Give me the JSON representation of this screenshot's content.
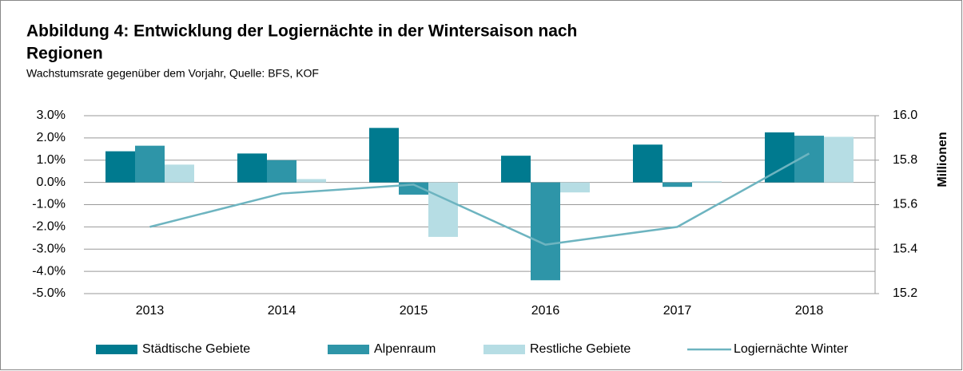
{
  "chart_data": {
    "type": "bar",
    "title": "Abbildung 4: Entwicklung der Logiernächte in der Wintersaison nach",
    "title_line2": "Regionen",
    "subtitle": "Wachstumsrate gegenüber dem Vorjahr, Quelle: BFS, KOF",
    "y2_label": "Millionen",
    "categories": [
      "2013",
      "2014",
      "2015",
      "2016",
      "2017",
      "2018"
    ],
    "series": [
      {
        "name": "Städtische Gebiete",
        "color": "#007a8f",
        "values": [
          1.4,
          1.3,
          2.45,
          1.2,
          1.7,
          2.25
        ]
      },
      {
        "name": "Alpenraum",
        "color": "#2e95a8",
        "values": [
          1.65,
          1.0,
          -0.55,
          -4.4,
          -0.2,
          2.1
        ]
      },
      {
        "name": "Restliche Gebiete",
        "color": "#b6dde4",
        "values": [
          0.8,
          0.15,
          -2.45,
          -0.45,
          0.05,
          2.05
        ]
      },
      {
        "name": "Logiernächte Winter",
        "color": "#6db4c0",
        "type": "line",
        "axis": "y2",
        "values": [
          15.5,
          15.65,
          15.69,
          15.42,
          15.5,
          15.83
        ]
      }
    ],
    "ylim": [
      -5,
      3
    ],
    "yticks": [
      {
        "value": 3,
        "label": "3.0%"
      },
      {
        "value": 2,
        "label": "2.0%"
      },
      {
        "value": 1,
        "label": "1.0%"
      },
      {
        "value": 0,
        "label": "0.0%"
      },
      {
        "value": -1,
        "label": "-1.0%"
      },
      {
        "value": -2,
        "label": "-2.0%"
      },
      {
        "value": -3,
        "label": "-3.0%"
      },
      {
        "value": -4,
        "label": "-4.0%"
      },
      {
        "value": -5,
        "label": "-5.0%"
      }
    ],
    "y2lim": [
      15.2,
      16.0
    ],
    "y2ticks": [
      {
        "value": 15.2,
        "label": "15.2"
      },
      {
        "value": 15.4,
        "label": "15.4"
      },
      {
        "value": 15.6,
        "label": "15.6"
      },
      {
        "value": 15.8,
        "label": "15.8"
      },
      {
        "value": 16.0,
        "label": "16.0"
      }
    ],
    "grid": true,
    "legend": "bottom"
  }
}
